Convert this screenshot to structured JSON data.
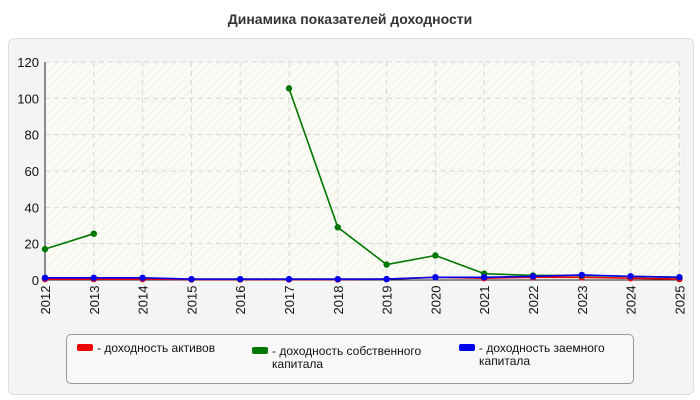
{
  "chart_data": {
    "type": "line",
    "title": "Динамика показателей доходности",
    "xlabel": "",
    "ylabel": "",
    "x": [
      "2012",
      "2013",
      "2014",
      "2015",
      "2016",
      "2017",
      "2018",
      "2019",
      "2020",
      "2021",
      "2022",
      "2023",
      "2024",
      "2025"
    ],
    "ylim": [
      0,
      120
    ],
    "yticks": [
      0,
      20,
      40,
      60,
      80,
      100,
      120
    ],
    "grid": true,
    "legend_position": "bottom",
    "series": [
      {
        "name": "- доходность активов",
        "color": "#ee0000",
        "values": [
          0.5,
          0.5,
          0.5,
          0.3,
          0.3,
          0.3,
          0.3,
          0.5,
          1.5,
          1.0,
          1.5,
          1.5,
          1.0,
          0.5
        ]
      },
      {
        "name": "- доходность собственного капитала",
        "color": "#007700",
        "values": [
          17,
          25.5,
          null,
          null,
          null,
          105.5,
          29,
          8.5,
          13.5,
          3.5,
          2.5,
          2.5,
          2.0,
          1.5
        ]
      },
      {
        "name": "- доходность заемного капитала",
        "color": "#0000ee",
        "values": [
          1.2,
          1.2,
          1.2,
          0.5,
          0.5,
          0.5,
          0.5,
          0.5,
          1.5,
          1.5,
          2.0,
          2.8,
          2.0,
          1.5
        ]
      }
    ]
  }
}
